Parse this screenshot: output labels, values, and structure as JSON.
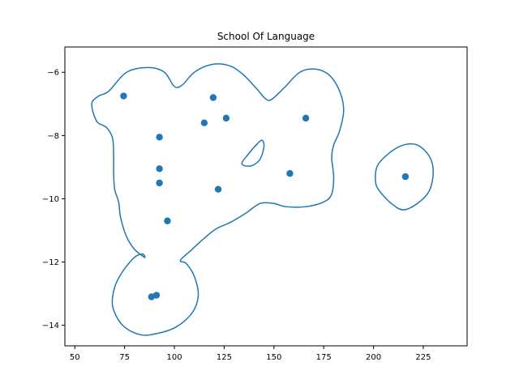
{
  "chart_data": {
    "type": "scatter",
    "title": "School Of Language",
    "xlabel": "",
    "ylabel": "",
    "xlim": [
      45,
      247
    ],
    "ylim": [
      -14.65,
      -5.2
    ],
    "xticks": [
      50,
      75,
      100,
      125,
      150,
      175,
      200,
      225
    ],
    "yticks": [
      -6,
      -8,
      -10,
      -12,
      -14
    ],
    "grid": false,
    "colors": {
      "series": "#1f77b4",
      "axes": "#000000",
      "background": "#ffffff"
    },
    "points": [
      {
        "x": 74.5,
        "y": -6.75
      },
      {
        "x": 119.5,
        "y": -6.8
      },
      {
        "x": 126,
        "y": -7.45
      },
      {
        "x": 115,
        "y": -7.6
      },
      {
        "x": 166,
        "y": -7.45
      },
      {
        "x": 92.5,
        "y": -8.05
      },
      {
        "x": 92.5,
        "y": -9.05
      },
      {
        "x": 92.5,
        "y": -9.5
      },
      {
        "x": 158,
        "y": -9.2
      },
      {
        "x": 122,
        "y": -9.7
      },
      {
        "x": 96.5,
        "y": -10.7
      },
      {
        "x": 88.5,
        "y": -13.1
      },
      {
        "x": 91,
        "y": -13.05
      },
      {
        "x": 216,
        "y": -9.3
      }
    ],
    "contours": [
      {
        "shape": "main-region",
        "path": [
          [
            67,
            -6.6
          ],
          [
            76,
            -6.0
          ],
          [
            87,
            -5.85
          ],
          [
            95,
            -6.0
          ],
          [
            100,
            -6.45
          ],
          [
            104,
            -6.4
          ],
          [
            110,
            -6.0
          ],
          [
            119,
            -5.75
          ],
          [
            128,
            -5.8
          ],
          [
            135,
            -6.1
          ],
          [
            141,
            -6.5
          ],
          [
            146,
            -6.85
          ],
          [
            149,
            -6.85
          ],
          [
            155,
            -6.5
          ],
          [
            163,
            -6.0
          ],
          [
            171,
            -5.9
          ],
          [
            178,
            -6.1
          ],
          [
            183,
            -6.6
          ],
          [
            185,
            -7.2
          ],
          [
            183,
            -7.85
          ],
          [
            180,
            -8.3
          ],
          [
            179,
            -8.7
          ],
          [
            180,
            -9.3
          ],
          [
            179,
            -9.85
          ],
          [
            175,
            -10.1
          ],
          [
            166,
            -10.25
          ],
          [
            156,
            -10.25
          ],
          [
            150,
            -10.15
          ],
          [
            143,
            -10.15
          ],
          [
            136,
            -10.45
          ],
          [
            128,
            -10.75
          ],
          [
            121,
            -10.95
          ],
          [
            115,
            -11.25
          ],
          [
            108,
            -11.65
          ],
          [
            103,
            -11.95
          ],
          [
            106,
            -12.05
          ],
          [
            110,
            -12.45
          ],
          [
            112,
            -13.05
          ],
          [
            109,
            -13.6
          ],
          [
            101,
            -14.05
          ],
          [
            92,
            -14.25
          ],
          [
            83,
            -14.3
          ],
          [
            74,
            -14.0
          ],
          [
            69,
            -13.4
          ],
          [
            70,
            -12.8
          ],
          [
            74,
            -12.3
          ],
          [
            80,
            -11.85
          ],
          [
            84,
            -11.75
          ],
          [
            85,
            -11.85
          ],
          [
            80,
            -11.6
          ],
          [
            76,
            -11.2
          ],
          [
            73,
            -10.6
          ],
          [
            72,
            -10.1
          ],
          [
            70,
            -9.7
          ],
          [
            69.5,
            -9.2
          ],
          [
            69.5,
            -8.7
          ],
          [
            69,
            -8.1
          ],
          [
            66,
            -7.75
          ],
          [
            61,
            -7.55
          ],
          [
            58.5,
            -7.0
          ],
          [
            62,
            -6.75
          ]
        ]
      },
      {
        "shape": "inner-hole",
        "path": [
          [
            134,
            -8.85
          ],
          [
            137,
            -8.6
          ],
          [
            141,
            -8.3
          ],
          [
            144,
            -8.15
          ],
          [
            145,
            -8.35
          ],
          [
            143,
            -8.75
          ],
          [
            139,
            -8.95
          ],
          [
            135,
            -8.95
          ]
        ]
      },
      {
        "shape": "right-ellipse",
        "path": [
          [
            202,
            -8.95
          ],
          [
            208,
            -8.55
          ],
          [
            215,
            -8.3
          ],
          [
            222,
            -8.3
          ],
          [
            228,
            -8.65
          ],
          [
            230,
            -9.15
          ],
          [
            228,
            -9.75
          ],
          [
            222,
            -10.15
          ],
          [
            215,
            -10.35
          ],
          [
            209,
            -10.15
          ],
          [
            203,
            -9.75
          ],
          [
            201,
            -9.45
          ]
        ]
      }
    ]
  }
}
